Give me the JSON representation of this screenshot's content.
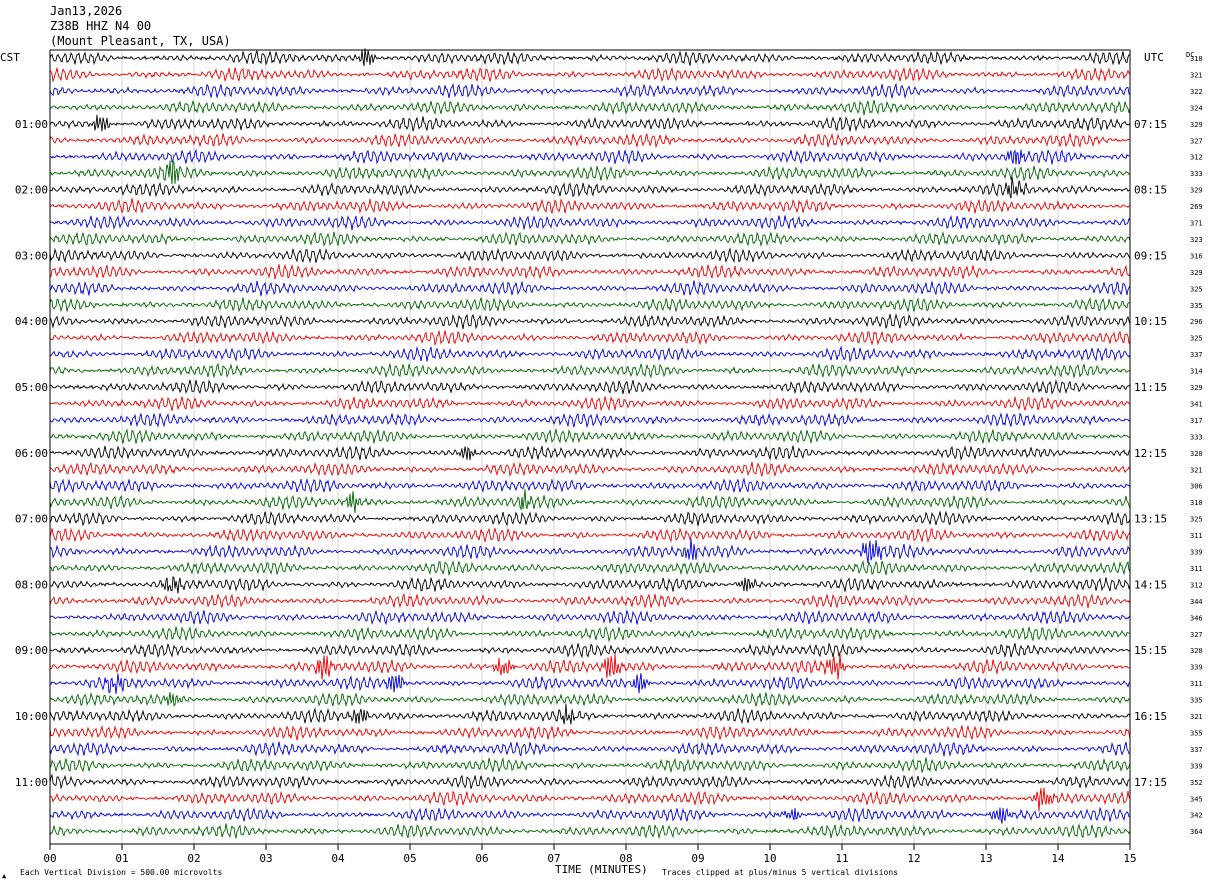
{
  "header": {
    "date": "Jan13,2026",
    "station": "Z38B HHZ N4 00",
    "location": "(Mount Pleasant, TX, USA)"
  },
  "left_zone_label": "CST",
  "right_zone_label": "UTC",
  "dc_header": "DC",
  "footer": {
    "scale": "Each Vertical Division =  500.00 microvolts",
    "xlabel": "TIME (MINUTES)",
    "clip_note": "Traces clipped at plus/minus 5 vertical divisions"
  },
  "colors": {
    "trace_cycle": [
      "#000000",
      "#ee0000",
      "#0000dd",
      "#006600"
    ],
    "grid": "#bbbbbb"
  },
  "chart_data": {
    "type": "line",
    "subtype": "helicorder",
    "xlabel": "TIME (MINUTES)",
    "xlim": [
      0,
      15
    ],
    "x_ticks": [
      "00",
      "01",
      "02",
      "03",
      "04",
      "05",
      "06",
      "07",
      "08",
      "09",
      "10",
      "11",
      "12",
      "13",
      "14",
      "15"
    ],
    "rows": 48,
    "left_time_labels": [
      {
        "row": 4,
        "label": "01:00"
      },
      {
        "row": 8,
        "label": "02:00"
      },
      {
        "row": 12,
        "label": "03:00"
      },
      {
        "row": 16,
        "label": "04:00"
      },
      {
        "row": 20,
        "label": "05:00"
      },
      {
        "row": 24,
        "label": "06:00"
      },
      {
        "row": 28,
        "label": "07:00"
      },
      {
        "row": 32,
        "label": "08:00"
      },
      {
        "row": 36,
        "label": "09:00"
      },
      {
        "row": 40,
        "label": "10:00"
      },
      {
        "row": 44,
        "label": "11:00"
      }
    ],
    "right_time_labels": [
      {
        "row": 4,
        "label": "07:15"
      },
      {
        "row": 8,
        "label": "08:15"
      },
      {
        "row": 12,
        "label": "09:15"
      },
      {
        "row": 16,
        "label": "10:15"
      },
      {
        "row": 20,
        "label": "11:15"
      },
      {
        "row": 24,
        "label": "12:15"
      },
      {
        "row": 28,
        "label": "13:15"
      },
      {
        "row": 32,
        "label": "14:15"
      },
      {
        "row": 36,
        "label": "15:15"
      },
      {
        "row": 40,
        "label": "16:15"
      },
      {
        "row": 44,
        "label": "17:15"
      }
    ],
    "dc_values": [
      "318",
      "321",
      "322",
      "324",
      "329",
      "327",
      "312",
      "333",
      "329",
      "269",
      "371",
      "323",
      "316",
      "329",
      "325",
      "335",
      "296",
      "325",
      "337",
      "314",
      "329",
      "341",
      "317",
      "333",
      "320",
      "321",
      "306",
      "310",
      "325",
      "311",
      "339",
      "311",
      "312",
      "344",
      "346",
      "327",
      "320",
      "339",
      "311",
      "335",
      "321",
      "355",
      "337",
      "339",
      "352",
      "345",
      "342",
      "364"
    ],
    "bursts": [
      {
        "row": 0,
        "minute": 4.4,
        "amp": 1.7
      },
      {
        "row": 4,
        "minute": 0.7,
        "amp": 1.5
      },
      {
        "row": 6,
        "minute": 13.4,
        "amp": 1.6
      },
      {
        "row": 7,
        "minute": 1.7,
        "amp": 2.2
      },
      {
        "row": 8,
        "minute": 13.4,
        "amp": 1.8
      },
      {
        "row": 24,
        "minute": 5.8,
        "amp": 1.6
      },
      {
        "row": 27,
        "minute": 4.2,
        "amp": 1.4
      },
      {
        "row": 27,
        "minute": 6.6,
        "amp": 1.5
      },
      {
        "row": 30,
        "minute": 8.9,
        "amp": 1.9
      },
      {
        "row": 30,
        "minute": 11.4,
        "amp": 2.2
      },
      {
        "row": 32,
        "minute": 1.7,
        "amp": 1.7
      },
      {
        "row": 32,
        "minute": 9.7,
        "amp": 1.3
      },
      {
        "row": 37,
        "minute": 3.8,
        "amp": 2.3
      },
      {
        "row": 37,
        "minute": 6.3,
        "amp": 1.8
      },
      {
        "row": 37,
        "minute": 7.8,
        "amp": 2.2
      },
      {
        "row": 37,
        "minute": 10.9,
        "amp": 2.4
      },
      {
        "row": 38,
        "minute": 0.9,
        "amp": 1.6
      },
      {
        "row": 38,
        "minute": 4.8,
        "amp": 1.9
      },
      {
        "row": 38,
        "minute": 8.2,
        "amp": 1.9
      },
      {
        "row": 39,
        "minute": 1.7,
        "amp": 1.4
      },
      {
        "row": 40,
        "minute": 4.3,
        "amp": 1.5
      },
      {
        "row": 40,
        "minute": 7.2,
        "amp": 1.5
      },
      {
        "row": 45,
        "minute": 13.8,
        "amp": 2.4
      },
      {
        "row": 46,
        "minute": 13.2,
        "amp": 1.8
      },
      {
        "row": 46,
        "minute": 10.3,
        "amp": 1.5
      }
    ]
  }
}
